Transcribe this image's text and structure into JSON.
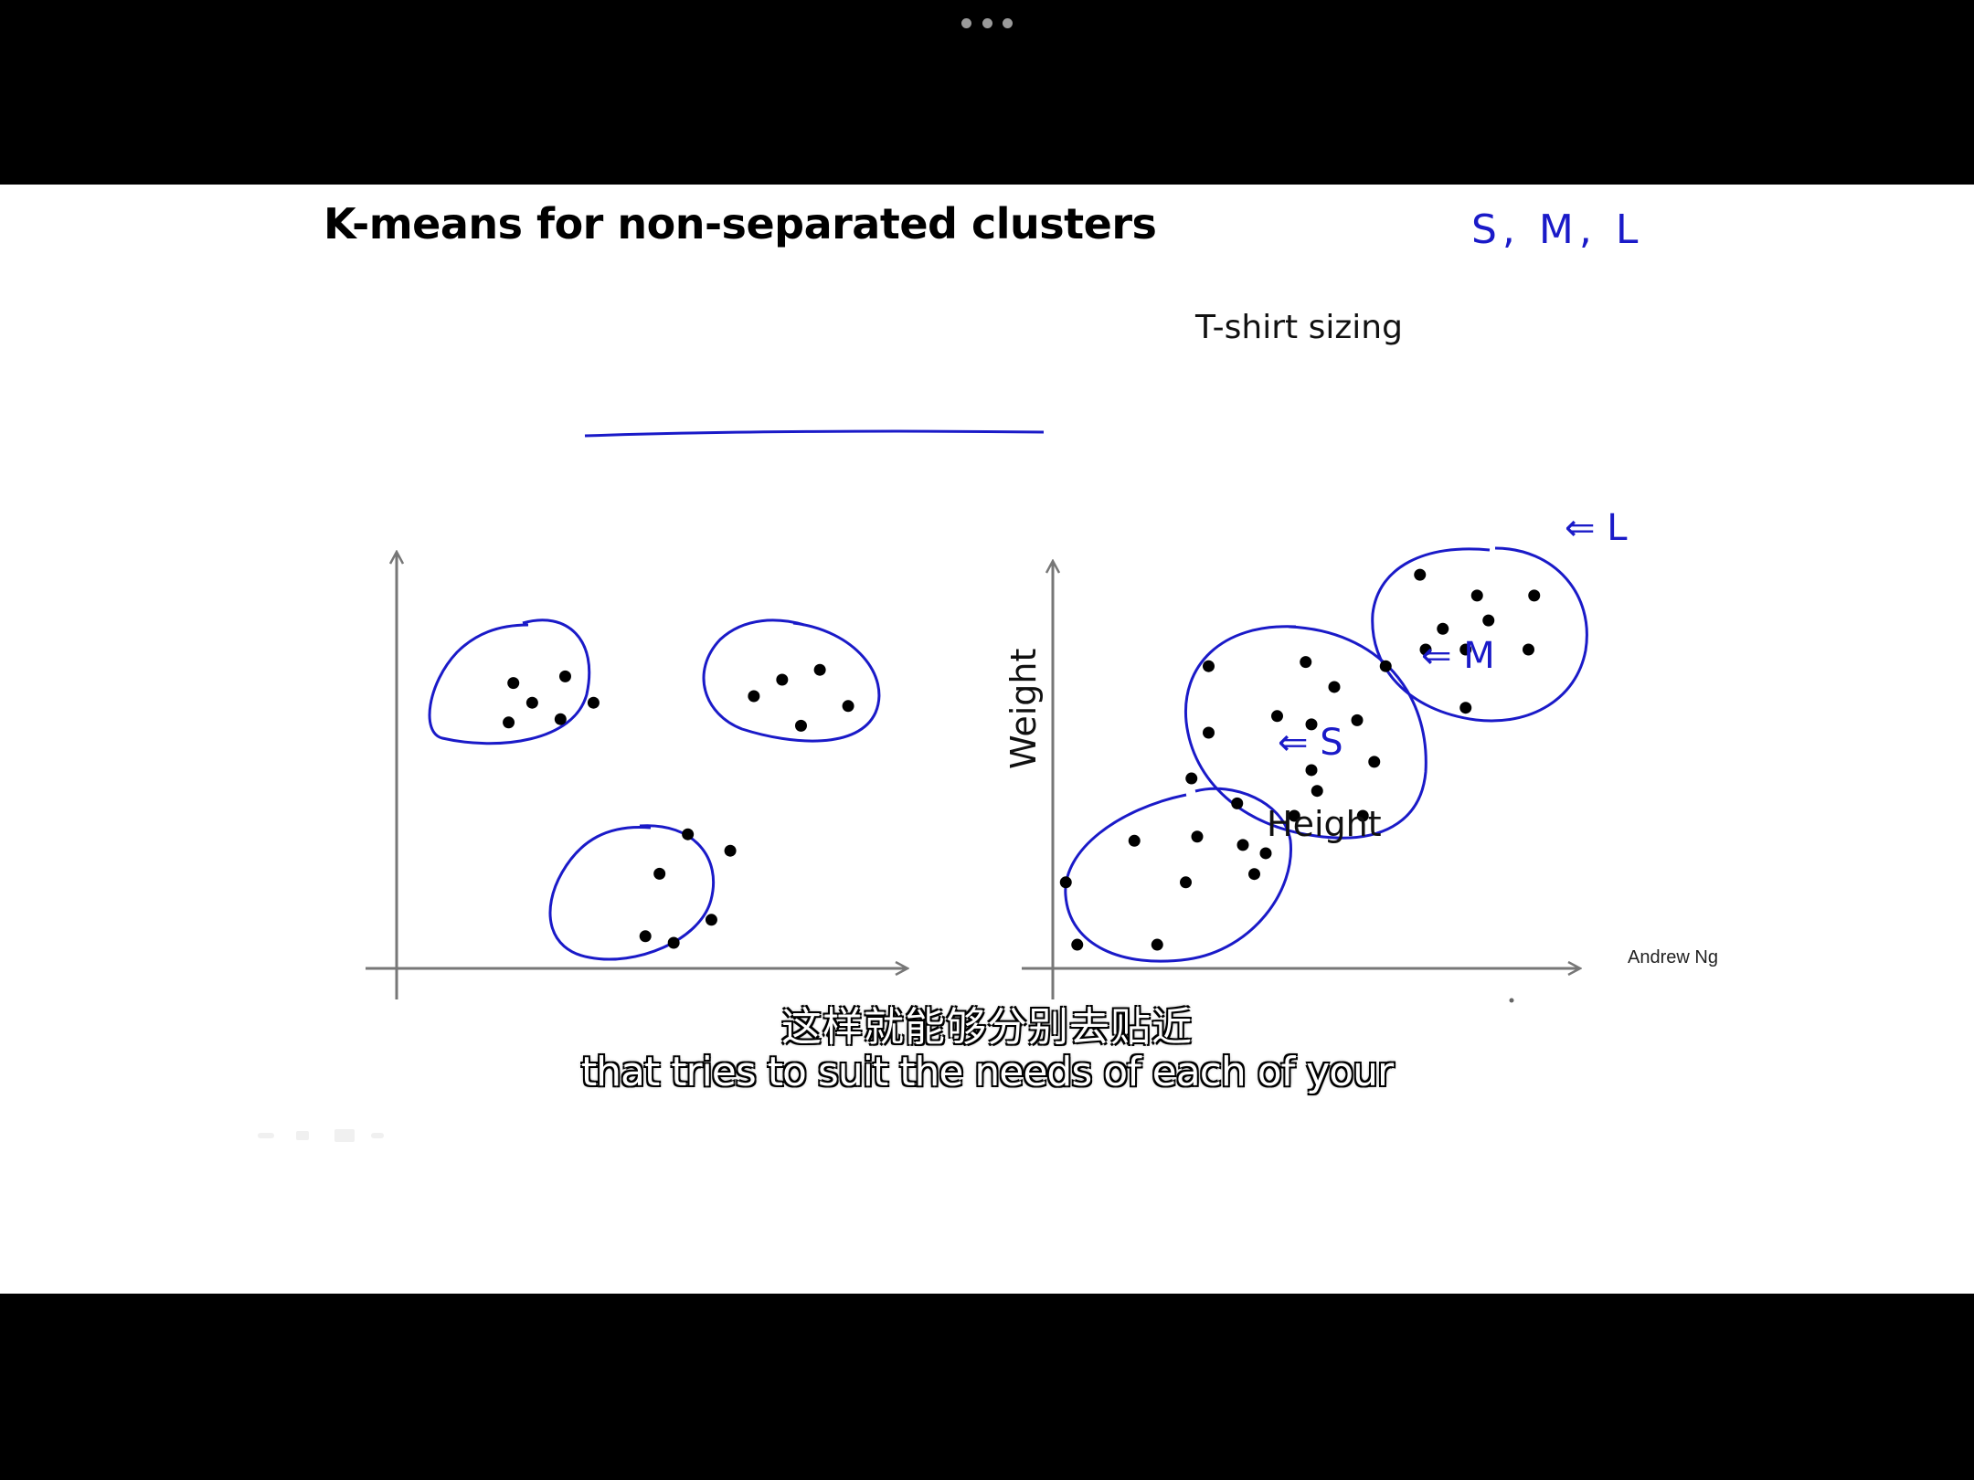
{
  "slide": {
    "title": "K-means for non-separated clusters",
    "author": "Andrew Ng",
    "handwriting": {
      "sizes": "S, M, L",
      "label_l": "⇐ L",
      "label_m": "⇐ M",
      "label_s": "⇐ S"
    }
  },
  "chart_data": [
    {
      "type": "scatter",
      "title": "",
      "xlabel": "",
      "ylabel": "",
      "clusters": 3,
      "points": [
        [
          0.17,
          0.84
        ],
        [
          0.21,
          0.78
        ],
        [
          0.16,
          0.72
        ],
        [
          0.28,
          0.86
        ],
        [
          0.27,
          0.73
        ],
        [
          0.34,
          0.78
        ],
        [
          0.68,
          0.8
        ],
        [
          0.78,
          0.71
        ],
        [
          0.88,
          0.77
        ],
        [
          0.82,
          0.88
        ],
        [
          0.74,
          0.85
        ],
        [
          0.48,
          0.26
        ],
        [
          0.54,
          0.38
        ],
        [
          0.63,
          0.33
        ],
        [
          0.59,
          0.12
        ],
        [
          0.51,
          0.05
        ],
        [
          0.45,
          0.07
        ]
      ]
    },
    {
      "type": "scatter",
      "title": "T-shirt sizing",
      "xlabel": "Height",
      "ylabel": "Weight",
      "groups": [
        "S",
        "M",
        "L"
      ],
      "points": [
        [
          0.09,
          0.24
        ],
        [
          0.21,
          0.34
        ],
        [
          0.32,
          0.35
        ],
        [
          0.3,
          0.24
        ],
        [
          0.42,
          0.26
        ],
        [
          0.4,
          0.33
        ],
        [
          0.11,
          0.09
        ],
        [
          0.25,
          0.09
        ],
        [
          0.44,
          0.31
        ],
        [
          0.34,
          0.76
        ],
        [
          0.46,
          0.64
        ],
        [
          0.34,
          0.6
        ],
        [
          0.51,
          0.77
        ],
        [
          0.56,
          0.71
        ],
        [
          0.6,
          0.63
        ],
        [
          0.52,
          0.62
        ],
        [
          0.52,
          0.51
        ],
        [
          0.53,
          0.46
        ],
        [
          0.63,
          0.53
        ],
        [
          0.31,
          0.49
        ],
        [
          0.39,
          0.43
        ],
        [
          0.49,
          0.4
        ],
        [
          0.61,
          0.4
        ],
        [
          0.71,
          0.98
        ],
        [
          0.75,
          0.85
        ],
        [
          0.81,
          0.93
        ],
        [
          0.83,
          0.87
        ],
        [
          0.91,
          0.93
        ],
        [
          0.72,
          0.8
        ],
        [
          0.79,
          0.8
        ],
        [
          0.9,
          0.8
        ],
        [
          0.65,
          0.76
        ],
        [
          0.79,
          0.66
        ]
      ]
    }
  ],
  "subtitles": {
    "chinese": "这样就能够分别去贴近",
    "english": "that tries to suit the needs of each of your"
  }
}
